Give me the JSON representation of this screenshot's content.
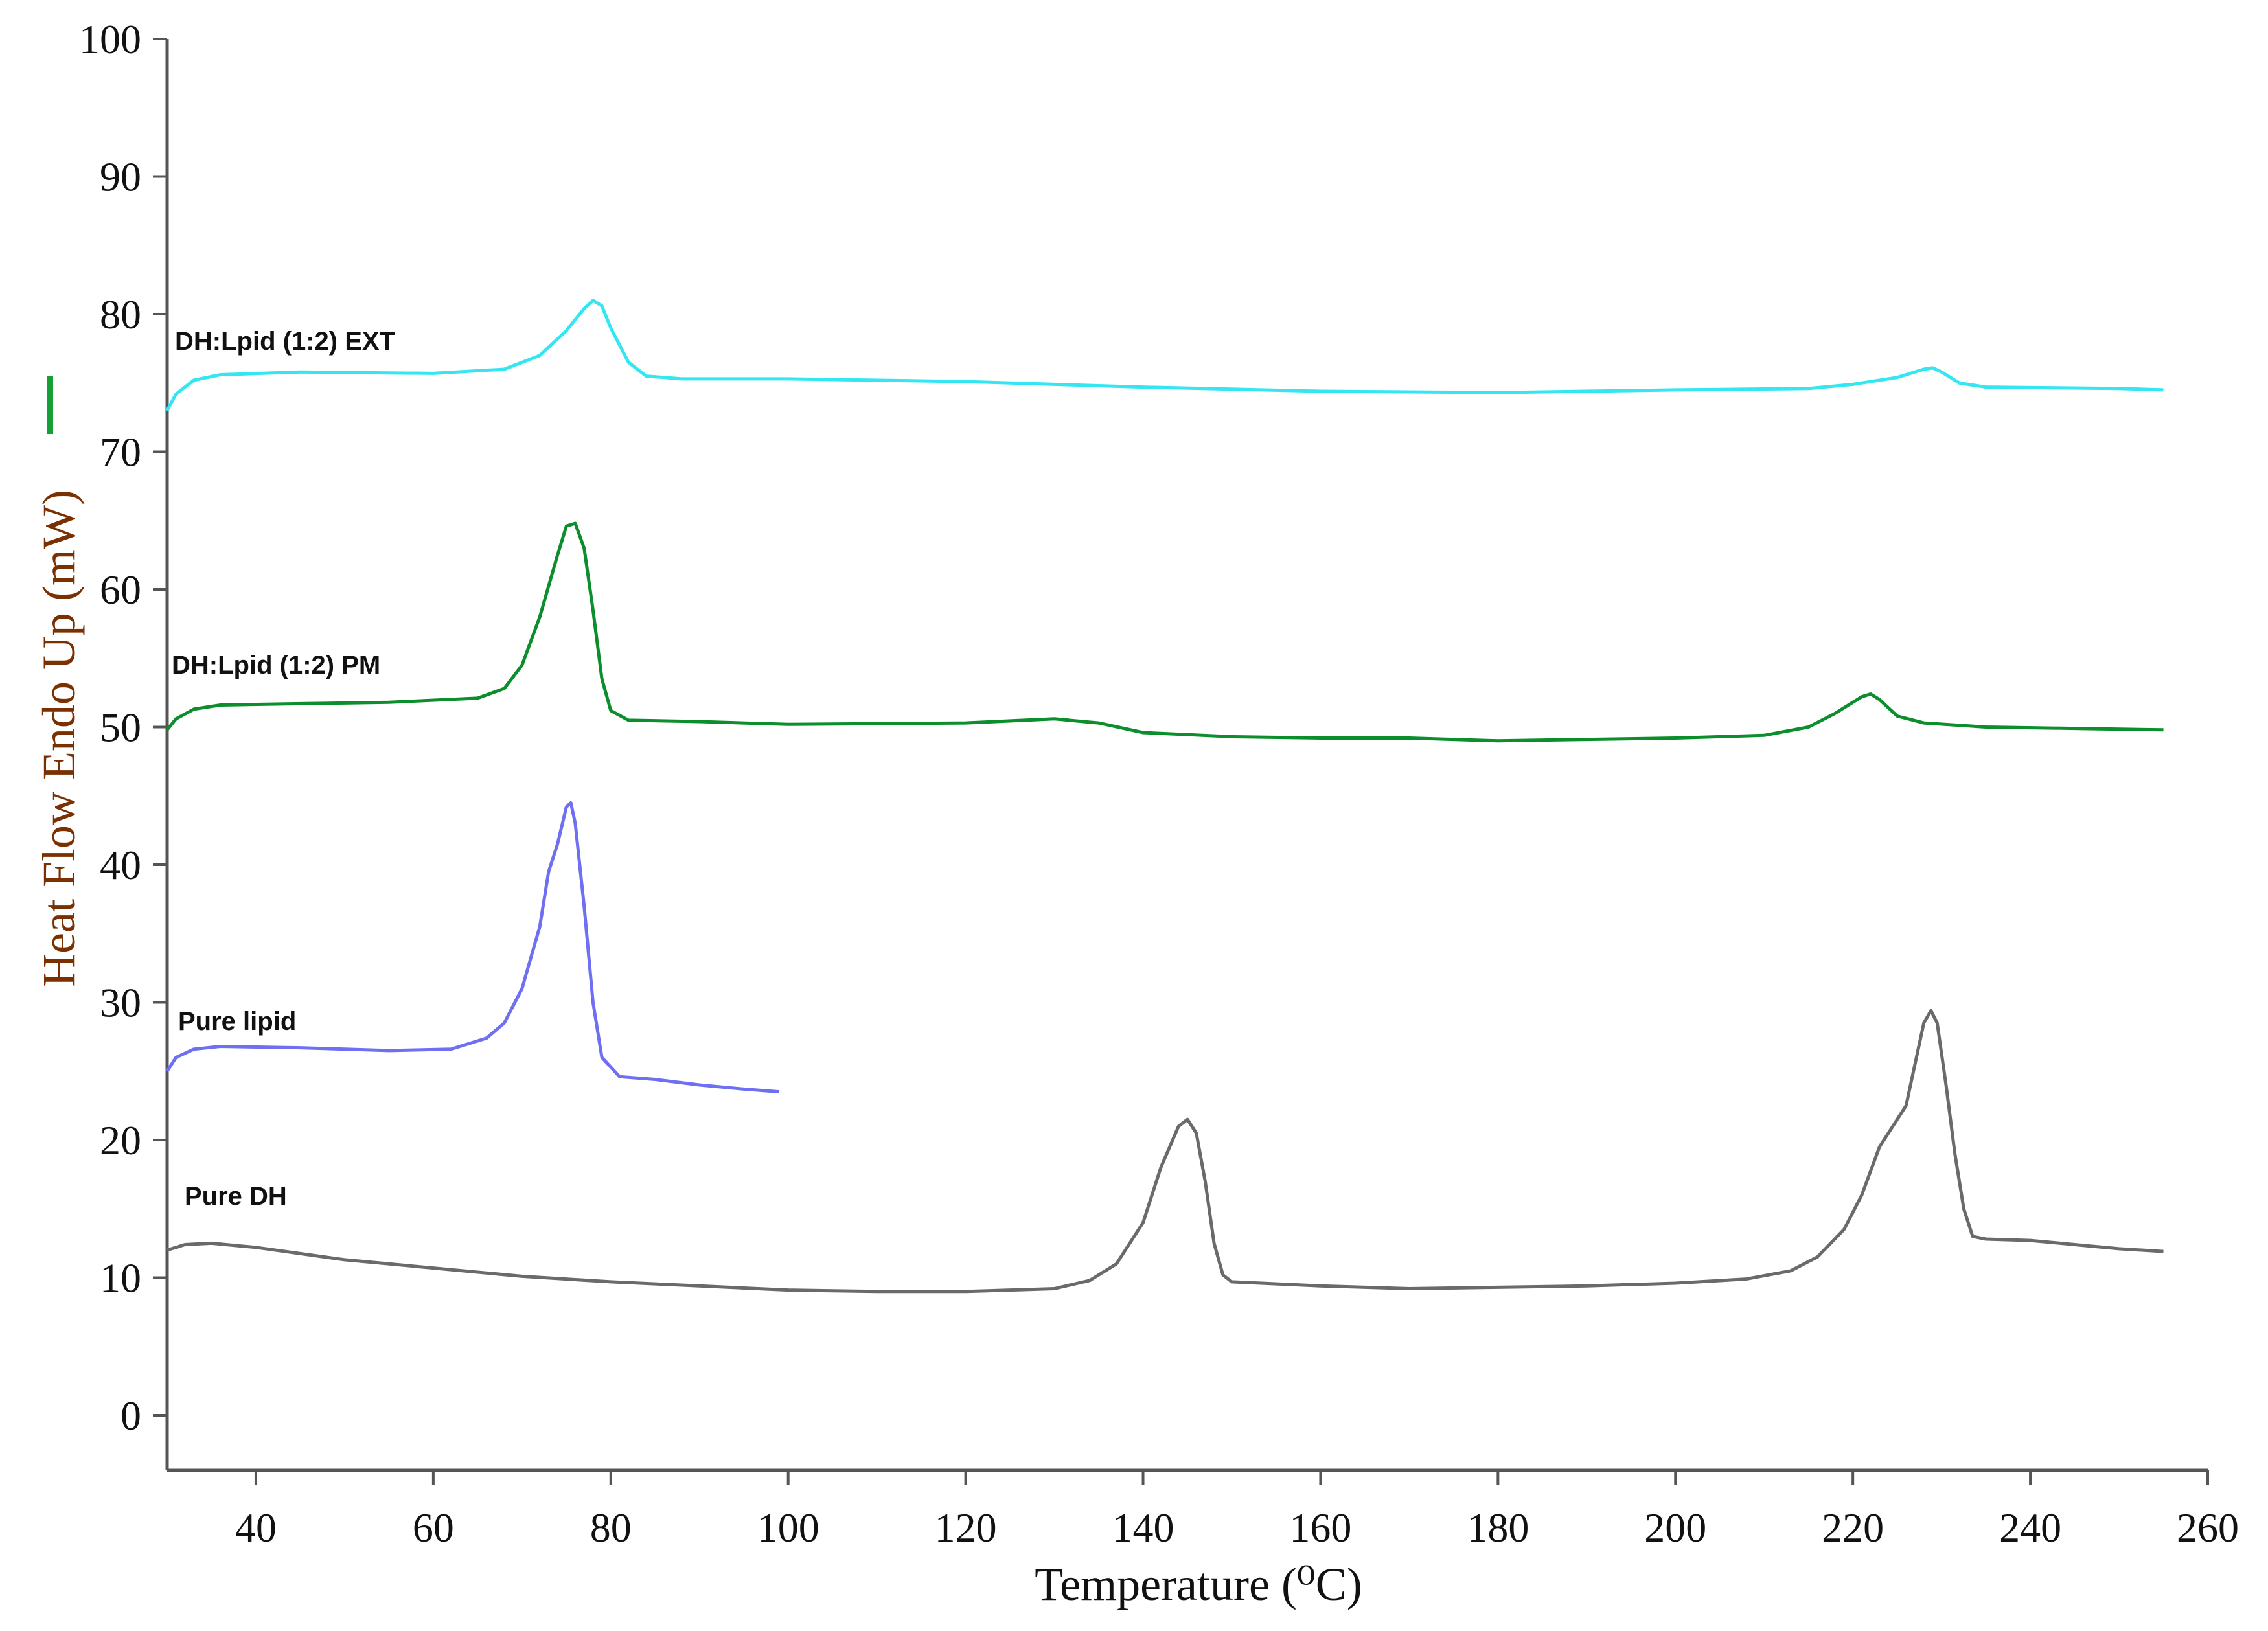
{
  "chart_data": {
    "type": "line",
    "xlabel": "Temperature (⁰C)",
    "ylabel": "Heat Flow Endo Up (mW)",
    "xlim": [
      30,
      260
    ],
    "ylim": [
      -4,
      100
    ],
    "x_ticks": [
      40,
      60,
      80,
      100,
      120,
      140,
      160,
      180,
      200,
      220,
      240,
      260
    ],
    "y_ticks": [
      0,
      10,
      20,
      30,
      40,
      50,
      60,
      70,
      80,
      90,
      100
    ],
    "grid": false,
    "legend": "none",
    "series": [
      {
        "name": "DH:Lpid (1:2) EXT",
        "color": "#33e6f2",
        "points": [
          [
            30,
            73.0
          ],
          [
            31,
            74.2
          ],
          [
            33,
            75.2
          ],
          [
            36,
            75.6
          ],
          [
            45,
            75.8
          ],
          [
            60,
            75.7
          ],
          [
            68,
            76.0
          ],
          [
            72,
            77.0
          ],
          [
            75,
            78.8
          ],
          [
            77,
            80.4
          ],
          [
            78,
            81.0
          ],
          [
            79,
            80.6
          ],
          [
            80,
            79.0
          ],
          [
            82,
            76.5
          ],
          [
            84,
            75.5
          ],
          [
            88,
            75.3
          ],
          [
            100,
            75.3
          ],
          [
            120,
            75.1
          ],
          [
            140,
            74.7
          ],
          [
            160,
            74.4
          ],
          [
            180,
            74.3
          ],
          [
            200,
            74.5
          ],
          [
            215,
            74.6
          ],
          [
            220,
            74.9
          ],
          [
            225,
            75.4
          ],
          [
            228,
            76.0
          ],
          [
            229,
            76.1
          ],
          [
            230,
            75.8
          ],
          [
            232,
            75.0
          ],
          [
            235,
            74.7
          ],
          [
            250,
            74.6
          ],
          [
            255,
            74.5
          ]
        ]
      },
      {
        "name": "DH:Lpid (1:2) PM",
        "color": "#0b8e2b",
        "points": [
          [
            30,
            49.8
          ],
          [
            31,
            50.6
          ],
          [
            33,
            51.3
          ],
          [
            36,
            51.6
          ],
          [
            45,
            51.7
          ],
          [
            55,
            51.8
          ],
          [
            65,
            52.1
          ],
          [
            68,
            52.8
          ],
          [
            70,
            54.5
          ],
          [
            72,
            58.0
          ],
          [
            74,
            62.5
          ],
          [
            75,
            64.6
          ],
          [
            76,
            64.8
          ],
          [
            77,
            63.0
          ],
          [
            78,
            58.5
          ],
          [
            79,
            53.5
          ],
          [
            80,
            51.2
          ],
          [
            82,
            50.5
          ],
          [
            90,
            50.4
          ],
          [
            100,
            50.2
          ],
          [
            120,
            50.3
          ],
          [
            130,
            50.6
          ],
          [
            135,
            50.3
          ],
          [
            140,
            49.6
          ],
          [
            150,
            49.3
          ],
          [
            160,
            49.2
          ],
          [
            170,
            49.2
          ],
          [
            180,
            49.0
          ],
          [
            190,
            49.1
          ],
          [
            200,
            49.2
          ],
          [
            210,
            49.4
          ],
          [
            215,
            50.0
          ],
          [
            218,
            51.0
          ],
          [
            221,
            52.2
          ],
          [
            222,
            52.4
          ],
          [
            223,
            52.0
          ],
          [
            225,
            50.8
          ],
          [
            228,
            50.3
          ],
          [
            235,
            50.0
          ],
          [
            245,
            49.9
          ],
          [
            255,
            49.8
          ]
        ]
      },
      {
        "name": "Pure lipid",
        "color": "#6f6ff2",
        "points": [
          [
            30,
            25.0
          ],
          [
            31,
            26.0
          ],
          [
            33,
            26.6
          ],
          [
            36,
            26.8
          ],
          [
            45,
            26.7
          ],
          [
            55,
            26.5
          ],
          [
            62,
            26.6
          ],
          [
            66,
            27.4
          ],
          [
            68,
            28.5
          ],
          [
            70,
            31.0
          ],
          [
            72,
            35.5
          ],
          [
            73,
            39.5
          ],
          [
            74,
            41.5
          ],
          [
            75,
            44.2
          ],
          [
            75.5,
            44.5
          ],
          [
            76,
            43.0
          ],
          [
            77,
            37.0
          ],
          [
            78,
            30.0
          ],
          [
            79,
            26.0
          ],
          [
            81,
            24.6
          ],
          [
            85,
            24.4
          ],
          [
            90,
            24.0
          ],
          [
            95,
            23.7
          ],
          [
            99,
            23.5
          ]
        ]
      },
      {
        "name": "Pure DH",
        "color": "#6a6a6a",
        "points": [
          [
            30,
            12.0
          ],
          [
            32,
            12.4
          ],
          [
            35,
            12.5
          ],
          [
            40,
            12.2
          ],
          [
            50,
            11.3
          ],
          [
            60,
            10.7
          ],
          [
            70,
            10.1
          ],
          [
            80,
            9.7
          ],
          [
            90,
            9.4
          ],
          [
            100,
            9.1
          ],
          [
            110,
            9.0
          ],
          [
            120,
            9.0
          ],
          [
            130,
            9.2
          ],
          [
            134,
            9.8
          ],
          [
            137,
            11.0
          ],
          [
            140,
            14.0
          ],
          [
            142,
            18.0
          ],
          [
            144,
            21.0
          ],
          [
            145,
            21.5
          ],
          [
            146,
            20.5
          ],
          [
            147,
            17.0
          ],
          [
            148,
            12.5
          ],
          [
            149,
            10.2
          ],
          [
            150,
            9.7
          ],
          [
            160,
            9.4
          ],
          [
            170,
            9.2
          ],
          [
            180,
            9.3
          ],
          [
            190,
            9.4
          ],
          [
            200,
            9.6
          ],
          [
            208,
            9.9
          ],
          [
            213,
            10.5
          ],
          [
            216,
            11.5
          ],
          [
            219,
            13.5
          ],
          [
            221,
            16.0
          ],
          [
            223,
            19.5
          ],
          [
            225,
            21.5
          ],
          [
            226,
            22.5
          ],
          [
            227,
            25.5
          ],
          [
            228,
            28.5
          ],
          [
            228.8,
            29.4
          ],
          [
            229.5,
            28.5
          ],
          [
            230.5,
            24.0
          ],
          [
            231.5,
            19.0
          ],
          [
            232.5,
            15.0
          ],
          [
            233.5,
            13.0
          ],
          [
            235,
            12.8
          ],
          [
            240,
            12.7
          ],
          [
            245,
            12.4
          ],
          [
            250,
            12.1
          ],
          [
            255,
            11.9
          ]
        ]
      }
    ],
    "annotations": [
      {
        "text": "DH:Lpid (1:2) EXT",
        "series": 0
      },
      {
        "text": "DH:Lpid (1:2) PM",
        "series": 1
      },
      {
        "text": "Pure lipid",
        "series": 2
      },
      {
        "text": "Pure DH",
        "series": 3
      }
    ]
  }
}
